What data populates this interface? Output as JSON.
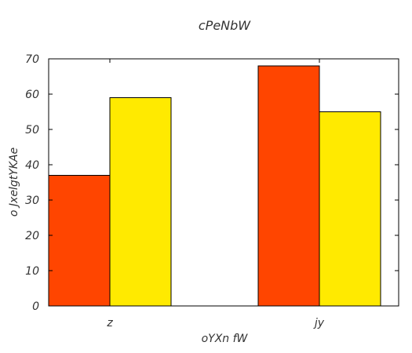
{
  "chart_data": {
    "type": "bar",
    "title": "cPeNbW",
    "xlabel": "oYXn fW",
    "ylabel": "o JxelgtYKAe",
    "categories": [
      "z",
      "jy"
    ],
    "series": [
      {
        "values": [
          37,
          68
        ],
        "color": "#ff4500"
      },
      {
        "values": [
          59,
          55
        ],
        "color": "#ffea00"
      }
    ],
    "ylim": [
      0,
      70
    ],
    "yticks": [
      0,
      10,
      20,
      30,
      40,
      50,
      60,
      70
    ],
    "grid": false,
    "legend": "none"
  }
}
